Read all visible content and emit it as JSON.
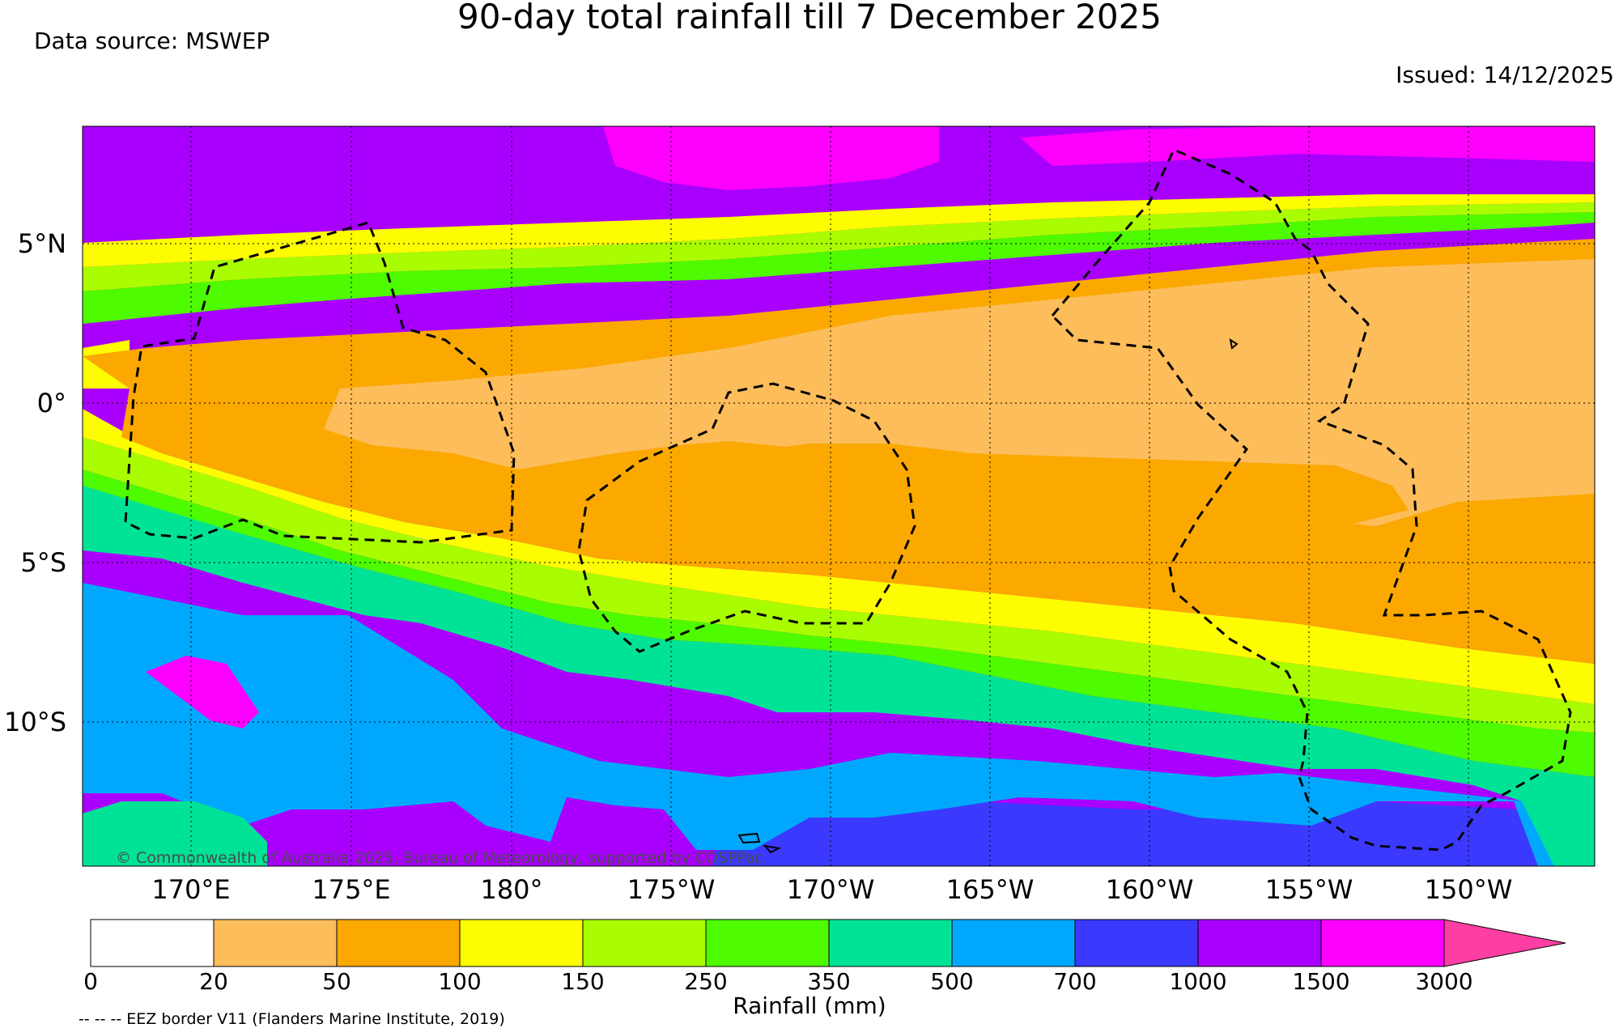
{
  "title": "90-day total rainfall till 7 December 2025",
  "data_source": "Data source: MSWEP",
  "issued": "Issued: 14/12/2025",
  "copyright": "© Commonwealth of Australia 2025, Bureau of Meteorology, supported by COSPPac",
  "lon_labels": [
    "170°E",
    "175°E",
    "180°",
    "175°W",
    "170°W",
    "165°W",
    "160°W",
    "155°W",
    "150°W"
  ],
  "lat_labels": [
    "5°N",
    "0°",
    "5°S",
    "10°S"
  ],
  "colorbar": {
    "label": "Rainfall (mm)",
    "ticks": [
      "0",
      "20",
      "50",
      "100",
      "150",
      "250",
      "350",
      "500",
      "700",
      "1000",
      "1500",
      "3000"
    ],
    "colors": [
      "#ffffff",
      "#fdbd5a",
      "#fba800",
      "#fdfc00",
      "#aafd00",
      "#4efb00",
      "#00e397",
      "#00a8fd",
      "#3b39fd",
      "#a900fd",
      "#fd00fd"
    ],
    "extend_color": "#fd3fa3"
  },
  "eez_note": "-- -- -- EEZ border V11 (Flanders Marine Institute, 2019)"
}
